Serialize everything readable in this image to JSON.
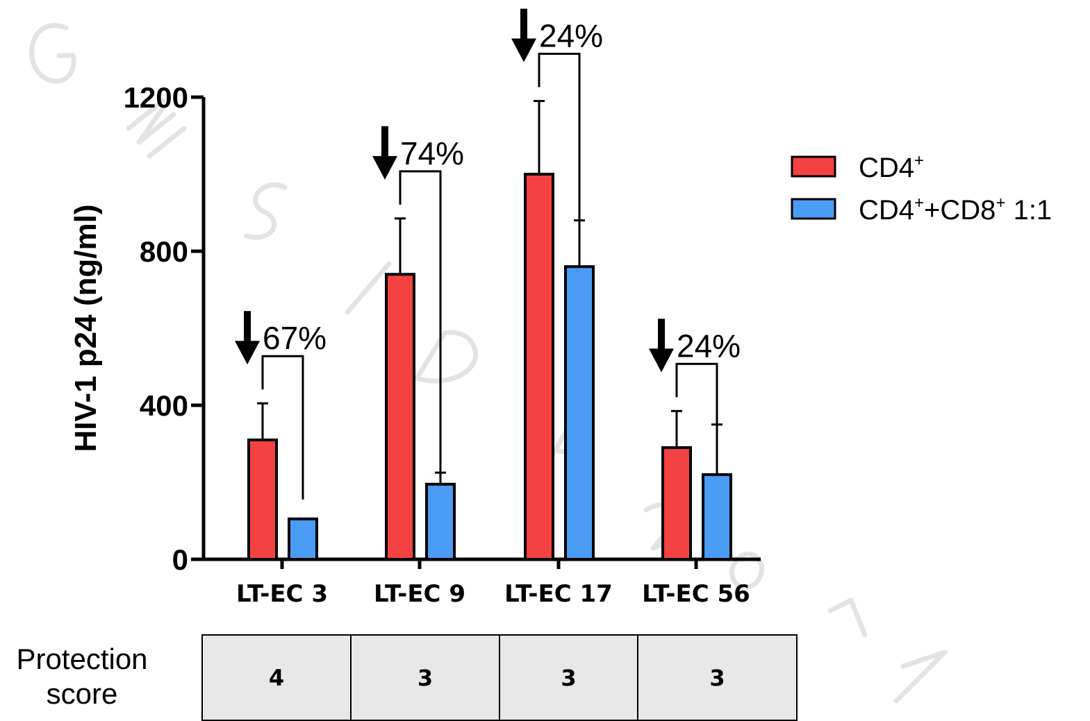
{
  "watermark": "GESIDA 2017",
  "chart_data": {
    "type": "bar",
    "ylabel": "HIV-1 p24 (ng/ml)",
    "xlabel": "",
    "ylim": [
      0,
      1200
    ],
    "yticks": [
      0,
      400,
      800,
      1200
    ],
    "categories": [
      "LT-EC 3",
      "LT-EC 9",
      "LT-EC 17",
      "LT-EC 56"
    ],
    "series": [
      {
        "name": "CD4⁺",
        "color": "#f44242",
        "values": [
          310,
          740,
          1000,
          290
        ],
        "error": [
          95,
          145,
          190,
          95
        ]
      },
      {
        "name": "CD4⁺+CD8⁺ 1:1",
        "color": "#4a9cf5",
        "values": [
          105,
          195,
          760,
          220
        ],
        "error": [
          0,
          30,
          120,
          130
        ]
      }
    ],
    "annotations": [
      "67%",
      "74%",
      "24%",
      "24%"
    ],
    "legend_position": "right",
    "grid": false
  },
  "protection": {
    "label_line1": "Protection",
    "label_line2": "score",
    "scores": [
      "4",
      "3",
      "3",
      "3"
    ]
  }
}
